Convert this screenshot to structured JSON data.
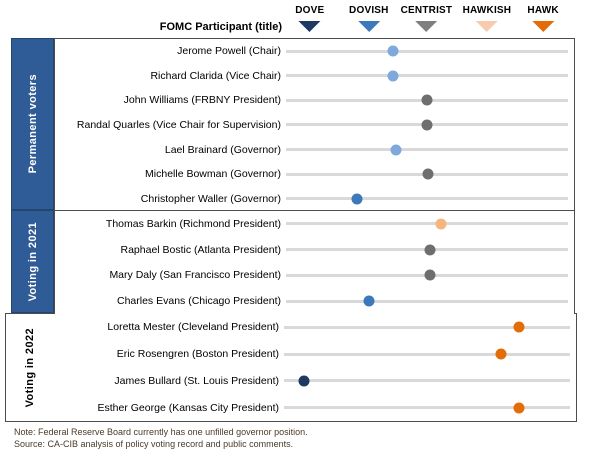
{
  "header": {
    "participant_column_label": "FOMC Participant (title)"
  },
  "notes": {
    "note": "Note: Federal Reserve Board currently has one unfilled governor position.",
    "source": "Source: CA-CIB analysis of policy voting record and public comments."
  },
  "colors": {
    "band_blue": "#2f5b96",
    "track_gray": "#d9d9d9",
    "box_border": "#4d4d4d",
    "dove_navy": "#1f3864",
    "dovish_blue": "#3d78bd",
    "light_blue": "#7fa8dc",
    "centrist_gray": "#6e6e6e",
    "hawkish_peach": "#f8cbad",
    "hawk_orange": "#e36c09"
  },
  "chart_data": {
    "type": "scatter",
    "title": "FOMC participants positioned on a dove-hawk spectrum",
    "x_axis": {
      "label": "FOMC Participant (title)",
      "range_pct": [
        0,
        100
      ],
      "categories": [
        {
          "label": "DOVE",
          "color": "#1f3864",
          "position_pct": 10
        },
        {
          "label": "DOVISH",
          "color": "#3d78bd",
          "position_pct": 30.5
        },
        {
          "label": "CENTRIST",
          "color": "#7f7f7f",
          "position_pct": 50.5
        },
        {
          "label": "HAWKISH",
          "color": "#f8cbad",
          "position_pct": 71.5
        },
        {
          "label": "HAWK",
          "color": "#e36c09",
          "position_pct": 91
        }
      ]
    },
    "sections": [
      {
        "label": "Permanent voters",
        "style": "blue-band",
        "participants": [
          {
            "name": "Jerome Powell (Chair)",
            "lean": "dovish-leaning-centrist",
            "position_pct": 38,
            "color": "#7fa8dc"
          },
          {
            "name": "Richard Clarida (Vice Chair)",
            "lean": "dovish-leaning-centrist",
            "position_pct": 38,
            "color": "#7fa8dc"
          },
          {
            "name": "John Williams (FRBNY President)",
            "lean": "centrist",
            "position_pct": 50,
            "color": "#6e6e6e"
          },
          {
            "name": "Randal Quarles (Vice Chair for Supervision)",
            "lean": "centrist",
            "position_pct": 50,
            "color": "#6e6e6e"
          },
          {
            "name": "Lael Brainard (Governor)",
            "lean": "dovish-leaning-centrist",
            "position_pct": 39,
            "color": "#7fa8dc"
          },
          {
            "name": "Michelle Bowman (Governor)",
            "lean": "centrist",
            "position_pct": 50.5,
            "color": "#6e6e6e"
          },
          {
            "name": "Christopher Waller (Governor)",
            "lean": "dovish",
            "position_pct": 25,
            "color": "#3d78bd"
          }
        ]
      },
      {
        "label": "Voting in 2021",
        "style": "blue-band",
        "participants": [
          {
            "name": "Thomas Barkin (Richmond President)",
            "lean": "slightly-hawkish",
            "position_pct": 55,
            "color": "#f5b57f"
          },
          {
            "name": "Raphael Bostic (Atlanta President)",
            "lean": "centrist",
            "position_pct": 51,
            "color": "#6e6e6e"
          },
          {
            "name": "Mary Daly (San Francisco President)",
            "lean": "centrist",
            "position_pct": 51,
            "color": "#6e6e6e"
          },
          {
            "name": "Charles Evans (Chicago President)",
            "lean": "dovish",
            "position_pct": 29.5,
            "color": "#3d78bd"
          }
        ]
      },
      {
        "label": "Voting in 2022",
        "style": "plain",
        "participants": [
          {
            "name": "Loretta Mester (Cleveland President)",
            "lean": "hawkish",
            "position_pct": 82,
            "color": "#e36c09"
          },
          {
            "name": "Eric Rosengren (Boston President)",
            "lean": "hawkish",
            "position_pct": 76,
            "color": "#e36c09"
          },
          {
            "name": "James Bullard (St. Louis President)",
            "lean": "dove",
            "position_pct": 7,
            "color": "#1f3864"
          },
          {
            "name": "Esther George (Kansas City President)",
            "lean": "hawkish",
            "position_pct": 82,
            "color": "#e36c09"
          }
        ]
      }
    ]
  }
}
